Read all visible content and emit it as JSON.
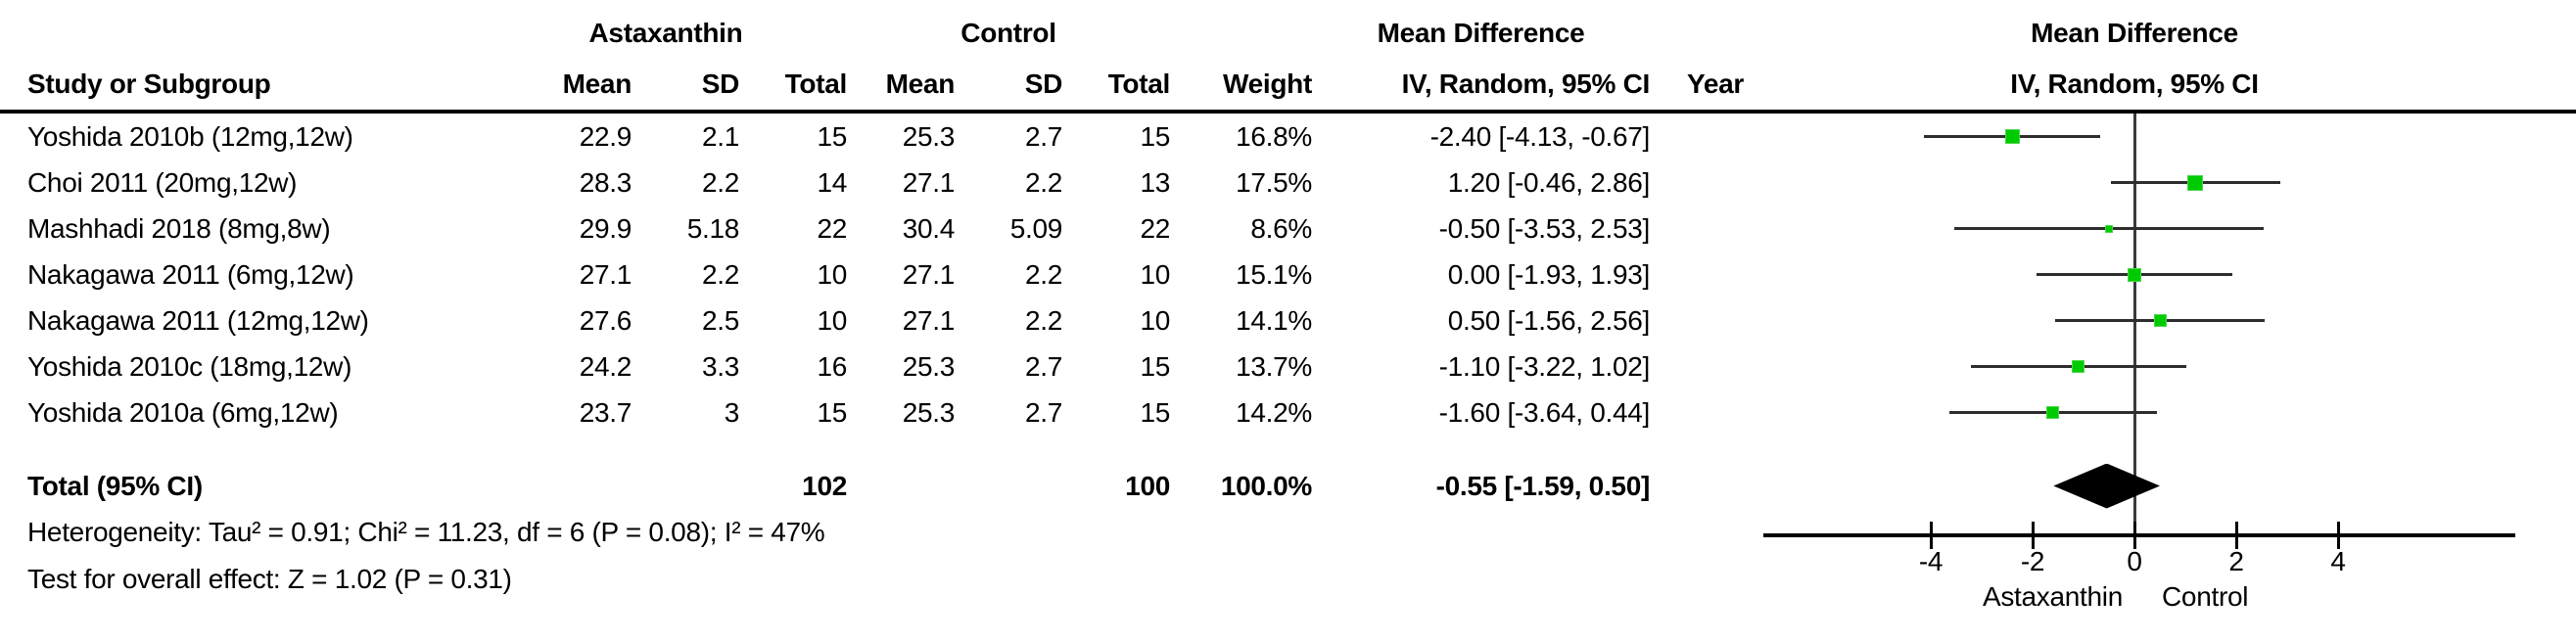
{
  "header": {
    "group1": "Astaxanthin",
    "group2": "Control",
    "effect_label": "Mean Difference",
    "effect_sub": "IV, Random, 95% CI",
    "col_study": "Study or Subgroup",
    "col_mean": "Mean",
    "col_sd": "SD",
    "col_total": "Total",
    "col_weight": "Weight",
    "col_ci": "IV, Random, 95% CI",
    "col_year": "Year"
  },
  "rows": [
    {
      "study": "Yoshida 2010b (12mg,12w)",
      "mean1": "22.9",
      "sd1": "2.1",
      "total1": "15",
      "mean2": "25.3",
      "sd2": "2.7",
      "total2": "15",
      "weight": "16.8%",
      "ci": "-2.40 [-4.13, -0.67]",
      "year": ""
    },
    {
      "study": "Choi 2011 (20mg,12w)",
      "mean1": "28.3",
      "sd1": "2.2",
      "total1": "14",
      "mean2": "27.1",
      "sd2": "2.2",
      "total2": "13",
      "weight": "17.5%",
      "ci": "1.20 [-0.46, 2.86]",
      "year": ""
    },
    {
      "study": "Mashhadi 2018 (8mg,8w)",
      "mean1": "29.9",
      "sd1": "5.18",
      "total1": "22",
      "mean2": "30.4",
      "sd2": "5.09",
      "total2": "22",
      "weight": "8.6%",
      "ci": "-0.50 [-3.53, 2.53]",
      "year": ""
    },
    {
      "study": "Nakagawa 2011 (6mg,12w)",
      "mean1": "27.1",
      "sd1": "2.2",
      "total1": "10",
      "mean2": "27.1",
      "sd2": "2.2",
      "total2": "10",
      "weight": "15.1%",
      "ci": "0.00 [-1.93, 1.93]",
      "year": ""
    },
    {
      "study": "Nakagawa 2011 (12mg,12w)",
      "mean1": "27.6",
      "sd1": "2.5",
      "total1": "10",
      "mean2": "27.1",
      "sd2": "2.2",
      "total2": "10",
      "weight": "14.1%",
      "ci": "0.50 [-1.56, 2.56]",
      "year": ""
    },
    {
      "study": "Yoshida 2010c (18mg,12w)",
      "mean1": "24.2",
      "sd1": "3.3",
      "total1": "16",
      "mean2": "25.3",
      "sd2": "2.7",
      "total2": "15",
      "weight": "13.7%",
      "ci": "-1.10 [-3.22, 1.02]",
      "year": ""
    },
    {
      "study": "Yoshida 2010a (6mg,12w)",
      "mean1": "23.7",
      "sd1": "3",
      "total1": "15",
      "mean2": "25.3",
      "sd2": "2.7",
      "total2": "15",
      "weight": "14.2%",
      "ci": "-1.60 [-3.64, 0.44]",
      "year": ""
    }
  ],
  "total_row": {
    "label": "Total (95% CI)",
    "total1": "102",
    "total2": "100",
    "weight": "100.0%",
    "ci": "-0.55 [-1.59, 0.50]"
  },
  "footer": {
    "heterogeneity": "Heterogeneity: Tau² = 0.91; Chi² = 11.23, df = 6 (P = 0.08); I² = 47%",
    "overall_effect": "Test for overall effect: Z = 1.02 (P = 0.31)"
  },
  "chart_data": {
    "type": "forest",
    "effect_measure": "Mean Difference",
    "model": "IV, Random, 95% CI",
    "studies": [
      {
        "name": "Yoshida 2010b (12mg,12w)",
        "effect": -2.4,
        "ci_low": -4.13,
        "ci_high": -0.67,
        "weight": 16.8
      },
      {
        "name": "Choi 2011 (20mg,12w)",
        "effect": 1.2,
        "ci_low": -0.46,
        "ci_high": 2.86,
        "weight": 17.5
      },
      {
        "name": "Mashhadi 2018 (8mg,8w)",
        "effect": -0.5,
        "ci_low": -3.53,
        "ci_high": 2.53,
        "weight": 8.6
      },
      {
        "name": "Nakagawa 2011 (6mg,12w)",
        "effect": 0.0,
        "ci_low": -1.93,
        "ci_high": 1.93,
        "weight": 15.1
      },
      {
        "name": "Nakagawa 2011 (12mg,12w)",
        "effect": 0.5,
        "ci_low": -1.56,
        "ci_high": 2.56,
        "weight": 14.1
      },
      {
        "name": "Yoshida 2010c (18mg,12w)",
        "effect": -1.1,
        "ci_low": -3.22,
        "ci_high": 1.02,
        "weight": 13.7
      },
      {
        "name": "Yoshida 2010a (6mg,12w)",
        "effect": -1.6,
        "ci_low": -3.64,
        "ci_high": 0.44,
        "weight": 14.2
      }
    ],
    "total": {
      "effect": -0.55,
      "ci_low": -1.59,
      "ci_high": 0.5
    },
    "axis": {
      "ticks": [
        -4,
        -2,
        0,
        2,
        4
      ],
      "min": -7.3,
      "max": 7.3,
      "grid": false
    },
    "favours": {
      "left": "Astaxanthin",
      "right": "Control"
    },
    "marker_color": "#00cb00",
    "diamond_color": "#000000"
  }
}
